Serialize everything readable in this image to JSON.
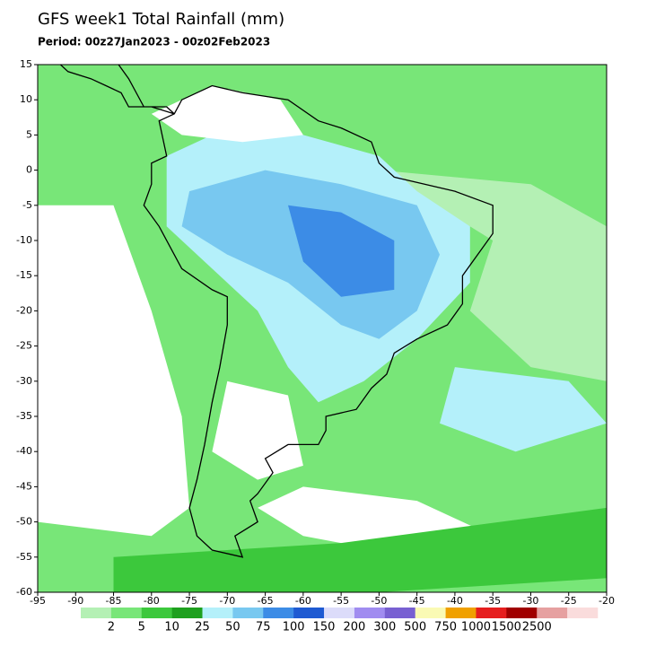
{
  "header": {
    "title": "GFS week1 Total Rainfall (mm)",
    "period": "Period: 00z27Jan2023 - 00z02Feb2023"
  },
  "map": {
    "xlim": [
      -95,
      -20
    ],
    "ylim": [
      -60,
      15
    ],
    "xticks": [
      -95,
      -90,
      -85,
      -80,
      -75,
      -70,
      -65,
      -60,
      -55,
      -50,
      -45,
      -40,
      -35,
      -30,
      -25,
      -20
    ],
    "yticks": [
      15,
      10,
      5,
      0,
      -5,
      -10,
      -15,
      -20,
      -25,
      -30,
      -35,
      -40,
      -45,
      -50,
      -55,
      -60
    ]
  },
  "colorbar": {
    "labels": [
      2,
      5,
      10,
      25,
      50,
      75,
      100,
      150,
      200,
      300,
      500,
      750,
      1000,
      1500,
      2500
    ],
    "colors": [
      "#b4f0b4",
      "#78e678",
      "#3cc83c",
      "#1ea01e",
      "#b4f0fa",
      "#78c8f0",
      "#3c8ce6",
      "#1e5ad2",
      "#dcdcfa",
      "#a08cf0",
      "#7860d2",
      "#fafab4",
      "#f0a000",
      "#e61e1e",
      "#a00000",
      "#e6a0a0",
      "#fadcdc"
    ]
  }
}
